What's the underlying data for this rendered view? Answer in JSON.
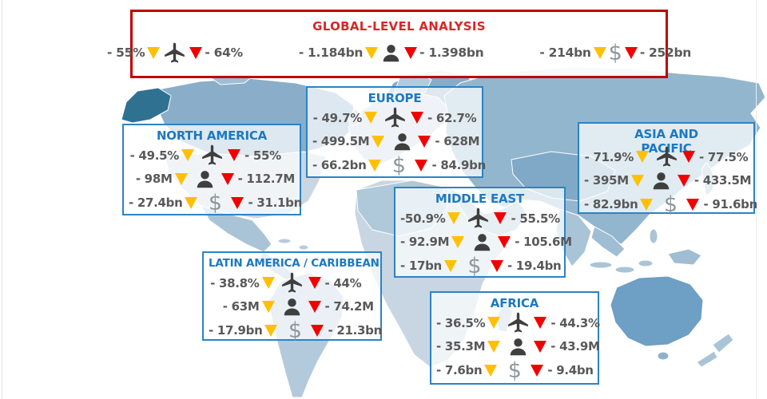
{
  "colors": {
    "region_border_blue": "#2B83C5",
    "region_title_blue": "#1C79C0",
    "global_border_red": "#C00000",
    "global_title_red": "#D82727",
    "value_text_gray": "#595959",
    "triangle_yellow": "#FFC000",
    "triangle_red": "#F20000",
    "icon_dark_gray": "#3F3F3F",
    "dollar_gray": "#8E969C"
  },
  "icons": {
    "dollar_glyph": "$"
  },
  "global": {
    "title": "GLOBAL-LEVEL ANALYSIS",
    "stats": [
      {
        "icon": "plane-icon",
        "from": "- 55%",
        "to": "- 64%"
      },
      {
        "icon": "person-icon",
        "from": "- 1.184bn",
        "to": "- 1.398bn"
      },
      {
        "icon": "dollar-icon",
        "from": "- 214bn",
        "to": "- 252bn"
      }
    ]
  },
  "regions": [
    {
      "id": "north-america",
      "title": "NORTH AMERICA",
      "stats": [
        {
          "icon": "plane-icon",
          "from": "- 49.5%",
          "to": "- 55%"
        },
        {
          "icon": "person-icon",
          "from": "- 98M",
          "to": "- 112.7M"
        },
        {
          "icon": "dollar-icon",
          "from": "- 27.4bn",
          "to": "- 31.1bn"
        }
      ]
    },
    {
      "id": "europe",
      "title": "EUROPE",
      "stats": [
        {
          "icon": "plane-icon",
          "from": "- 49.7%",
          "to": "- 62.7%"
        },
        {
          "icon": "person-icon",
          "from": "- 499.5M",
          "to": "- 628M"
        },
        {
          "icon": "dollar-icon",
          "from": "- 66.2bn",
          "to": "- 84.9bn"
        }
      ]
    },
    {
      "id": "asia-pacific",
      "title": "ASIA AND PACIFIC",
      "stats": [
        {
          "icon": "plane-icon",
          "from": "- 71.9%",
          "to": "- 77.5%"
        },
        {
          "icon": "person-icon",
          "from": "- 395M",
          "to": "- 433.5M"
        },
        {
          "icon": "dollar-icon",
          "from": "- 82.9bn",
          "to": "- 91.6bn"
        }
      ]
    },
    {
      "id": "middle-east",
      "title": "MIDDLE EAST",
      "stats": [
        {
          "icon": "plane-icon",
          "from": "-50.9%",
          "to": "- 55.5%"
        },
        {
          "icon": "person-icon",
          "from": "- 92.9M",
          "to": "- 105.6M"
        },
        {
          "icon": "dollar-icon",
          "from": "- 17bn",
          "to": "- 19.4bn"
        }
      ]
    },
    {
      "id": "latin-america",
      "title": "LATIN AMERICA / CARIBBEAN",
      "stats": [
        {
          "icon": "plane-icon",
          "from": "- 38.8%",
          "to": "- 44%"
        },
        {
          "icon": "person-icon",
          "from": "- 63M",
          "to": "- 74.2M"
        },
        {
          "icon": "dollar-icon",
          "from": "- 17.9bn",
          "to": "- 21.3bn"
        }
      ]
    },
    {
      "id": "africa",
      "title": "AFRICA",
      "stats": [
        {
          "icon": "plane-icon",
          "from": "- 36.5%",
          "to": "- 44.3%"
        },
        {
          "icon": "person-icon",
          "from": "- 35.3M",
          "to": "- 43.9M"
        },
        {
          "icon": "dollar-icon",
          "from": "- 7.6bn",
          "to": "- 9.4bn"
        }
      ]
    }
  ]
}
